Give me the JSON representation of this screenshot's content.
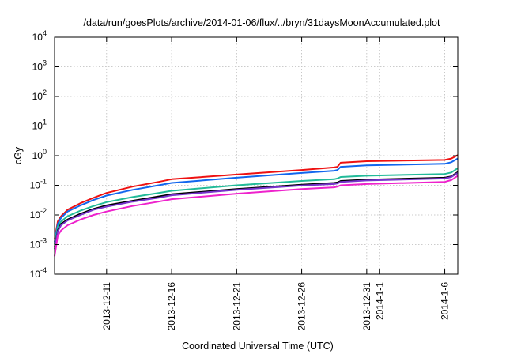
{
  "chart_data": {
    "type": "line",
    "title": "/data/run/goesPlots/archive/2014-01-06/flux/../bryn/31daysMoonAccumulated.plot",
    "xlabel": "Coordinated Universal Time (UTC)",
    "ylabel": "cGy",
    "yscale": "log",
    "ylim": [
      0.0001,
      10000
    ],
    "xlim": [
      "2013-12-07",
      "2014-01-07"
    ],
    "grid": true,
    "y_ticks": [
      {
        "base": "10",
        "exp": "-4",
        "value": 0.0001
      },
      {
        "base": "10",
        "exp": "-3",
        "value": 0.001
      },
      {
        "base": "10",
        "exp": "-2",
        "value": 0.01
      },
      {
        "base": "10",
        "exp": "-1",
        "value": 0.1
      },
      {
        "base": "10",
        "exp": "0",
        "value": 1
      },
      {
        "base": "10",
        "exp": "1",
        "value": 10
      },
      {
        "base": "10",
        "exp": "2",
        "value": 100
      },
      {
        "base": "10",
        "exp": "3",
        "value": 1000
      },
      {
        "base": "10",
        "exp": "4",
        "value": 10000
      }
    ],
    "x_ticks": [
      {
        "label": "2013-12-11",
        "value": "2013-12-11"
      },
      {
        "label": "2013-12-16",
        "value": "2013-12-16"
      },
      {
        "label": "2013-12-21",
        "value": "2013-12-21"
      },
      {
        "label": "2013-12-26",
        "value": "2013-12-26"
      },
      {
        "label": "2013-12-31",
        "value": "2013-12-31"
      },
      {
        "label": "2014-1-1",
        "value": "2014-01-01"
      },
      {
        "label": "2014-1-6",
        "value": "2014-01-06"
      }
    ],
    "series": [
      {
        "color": "#ee1111",
        "points": [
          [
            "2013-12-07",
            0.0015
          ],
          [
            "2013-12-07T06:00",
            0.006
          ],
          [
            "2013-12-07T12:00",
            0.009
          ],
          [
            "2013-12-08",
            0.015
          ],
          [
            "2013-12-09",
            0.025
          ],
          [
            "2013-12-10",
            0.038
          ],
          [
            "2013-12-11",
            0.055
          ],
          [
            "2013-12-13",
            0.09
          ],
          [
            "2013-12-15",
            0.13
          ],
          [
            "2013-12-16",
            0.16
          ],
          [
            "2013-12-21",
            0.23
          ],
          [
            "2013-12-26",
            0.33
          ],
          [
            "2013-12-28T12:00",
            0.4
          ],
          [
            "2013-12-28T18:00",
            0.42
          ],
          [
            "2013-12-29",
            0.58
          ],
          [
            "2013-12-31",
            0.65
          ],
          [
            "2014-01-06",
            0.72
          ],
          [
            "2014-01-06T12:00",
            0.8
          ],
          [
            "2014-01-07",
            1.05
          ]
        ]
      },
      {
        "color": "#1166ee",
        "points": [
          [
            "2013-12-07",
            0.0012
          ],
          [
            "2013-12-07T06:00",
            0.005
          ],
          [
            "2013-12-07T12:00",
            0.008
          ],
          [
            "2013-12-08",
            0.013
          ],
          [
            "2013-12-09",
            0.021
          ],
          [
            "2013-12-10",
            0.032
          ],
          [
            "2013-12-11",
            0.045
          ],
          [
            "2013-12-13",
            0.07
          ],
          [
            "2013-12-15",
            0.1
          ],
          [
            "2013-12-16",
            0.12
          ],
          [
            "2013-12-21",
            0.18
          ],
          [
            "2013-12-26",
            0.26
          ],
          [
            "2013-12-28T12:00",
            0.31
          ],
          [
            "2013-12-28T18:00",
            0.33
          ],
          [
            "2013-12-29",
            0.42
          ],
          [
            "2013-12-31",
            0.47
          ],
          [
            "2014-01-06",
            0.53
          ],
          [
            "2014-01-06T12:00",
            0.6
          ],
          [
            "2014-01-07",
            0.8
          ]
        ]
      },
      {
        "color": "#22bb99",
        "points": [
          [
            "2013-12-07",
            0.001
          ],
          [
            "2013-12-07T06:00",
            0.004
          ],
          [
            "2013-12-07T12:00",
            0.006
          ],
          [
            "2013-12-08",
            0.009
          ],
          [
            "2013-12-09",
            0.014
          ],
          [
            "2013-12-10",
            0.02
          ],
          [
            "2013-12-11",
            0.027
          ],
          [
            "2013-12-13",
            0.04
          ],
          [
            "2013-12-15",
            0.055
          ],
          [
            "2013-12-16",
            0.065
          ],
          [
            "2013-12-21",
            0.1
          ],
          [
            "2013-12-26",
            0.14
          ],
          [
            "2013-12-28T12:00",
            0.16
          ],
          [
            "2013-12-28T18:00",
            0.17
          ],
          [
            "2013-12-29",
            0.19
          ],
          [
            "2013-12-31",
            0.21
          ],
          [
            "2014-01-06",
            0.24
          ],
          [
            "2014-01-06T12:00",
            0.27
          ],
          [
            "2014-01-07",
            0.38
          ]
        ]
      },
      {
        "color": "#000000",
        "points": [
          [
            "2013-12-07",
            0.0008
          ],
          [
            "2013-12-07T06:00",
            0.003
          ],
          [
            "2013-12-07T12:00",
            0.005
          ],
          [
            "2013-12-08",
            0.007
          ],
          [
            "2013-12-09",
            0.011
          ],
          [
            "2013-12-10",
            0.016
          ],
          [
            "2013-12-11",
            0.021
          ],
          [
            "2013-12-13",
            0.03
          ],
          [
            "2013-12-15",
            0.042
          ],
          [
            "2013-12-16",
            0.05
          ],
          [
            "2013-12-21",
            0.075
          ],
          [
            "2013-12-26",
            0.105
          ],
          [
            "2013-12-28T12:00",
            0.12
          ],
          [
            "2013-12-28T18:00",
            0.125
          ],
          [
            "2013-12-29",
            0.14
          ],
          [
            "2013-12-31",
            0.155
          ],
          [
            "2014-01-06",
            0.18
          ],
          [
            "2014-01-06T12:00",
            0.2
          ],
          [
            "2014-01-07",
            0.28
          ]
        ]
      },
      {
        "color": "#7733cc",
        "points": [
          [
            "2013-12-07",
            0.0007
          ],
          [
            "2013-12-07T06:00",
            0.0028
          ],
          [
            "2013-12-07T12:00",
            0.0045
          ],
          [
            "2013-12-08",
            0.0065
          ],
          [
            "2013-12-09",
            0.01
          ],
          [
            "2013-12-10",
            0.015
          ],
          [
            "2013-12-11",
            0.019
          ],
          [
            "2013-12-13",
            0.028
          ],
          [
            "2013-12-15",
            0.038
          ],
          [
            "2013-12-16",
            0.046
          ],
          [
            "2013-12-21",
            0.07
          ],
          [
            "2013-12-26",
            0.098
          ],
          [
            "2013-12-28T12:00",
            0.11
          ],
          [
            "2013-12-28T18:00",
            0.115
          ],
          [
            "2013-12-29",
            0.13
          ],
          [
            "2013-12-31",
            0.145
          ],
          [
            "2014-01-06",
            0.17
          ],
          [
            "2014-01-06T12:00",
            0.19
          ],
          [
            "2014-01-07",
            0.26
          ]
        ]
      },
      {
        "color": "#ee22cc",
        "points": [
          [
            "2013-12-07",
            0.0004
          ],
          [
            "2013-12-07T06:00",
            0.002
          ],
          [
            "2013-12-07T12:00",
            0.003
          ],
          [
            "2013-12-08",
            0.0045
          ],
          [
            "2013-12-09",
            0.007
          ],
          [
            "2013-12-10",
            0.01
          ],
          [
            "2013-12-11",
            0.013
          ],
          [
            "2013-12-13",
            0.02
          ],
          [
            "2013-12-15",
            0.028
          ],
          [
            "2013-12-16",
            0.034
          ],
          [
            "2013-12-21",
            0.052
          ],
          [
            "2013-12-26",
            0.075
          ],
          [
            "2013-12-28T12:00",
            0.085
          ],
          [
            "2013-12-28T18:00",
            0.09
          ],
          [
            "2013-12-29",
            0.1
          ],
          [
            "2013-12-31",
            0.11
          ],
          [
            "2014-01-06",
            0.13
          ],
          [
            "2014-01-06T12:00",
            0.15
          ],
          [
            "2014-01-07",
            0.21
          ]
        ]
      }
    ]
  }
}
